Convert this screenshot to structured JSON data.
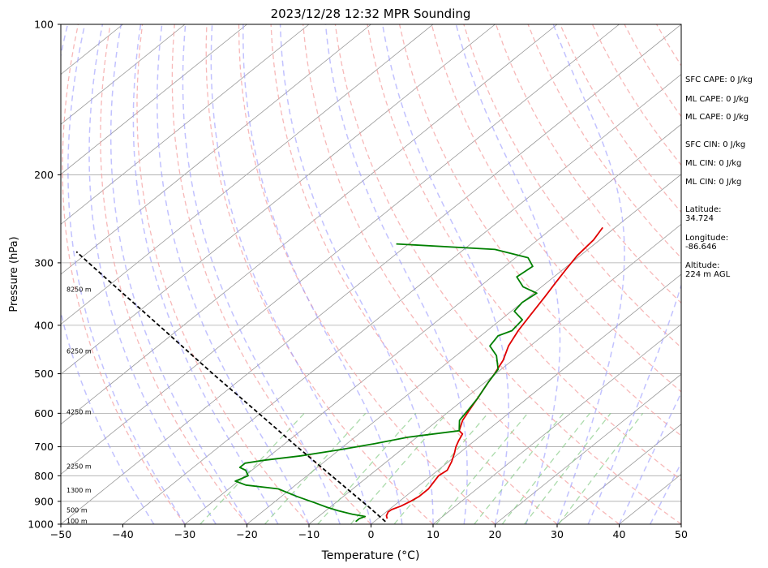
{
  "chart_data": {
    "type": "line",
    "title": "2023/12/28 12:32 MPR Sounding",
    "xlabel": "Temperature (°C)",
    "ylabel": "Pressure (hPa)",
    "xlim": [
      -50,
      50
    ],
    "ylim": [
      1000,
      100
    ],
    "y_scale": "log",
    "xticks": [
      -50,
      -40,
      -30,
      -20,
      -10,
      0,
      10,
      20,
      30,
      40,
      50
    ],
    "yticks": [
      100,
      200,
      300,
      400,
      500,
      600,
      700,
      800,
      900,
      1000
    ],
    "grid": true,
    "background_lines": {
      "isotherms_skewed": {
        "color": "#999999",
        "style": "solid"
      },
      "dry_adiabats": {
        "color": "#f4a0a0",
        "style": "dashed"
      },
      "moist_adiabats": {
        "color": "#9999ff",
        "style": "dashed"
      },
      "mixing_ratio": {
        "color": "#88cc88",
        "style": "dashed"
      }
    },
    "series": [
      {
        "key": "temperature",
        "color": "#e00000",
        "points": [
          {
            "p": 975,
            "t": 1.5
          },
          {
            "p": 962,
            "t": 0.8
          },
          {
            "p": 945,
            "t": 0.3
          },
          {
            "p": 935,
            "t": 0.4
          },
          {
            "p": 920,
            "t": 1.2
          },
          {
            "p": 900,
            "t": 1.8
          },
          {
            "p": 880,
            "t": 2.2
          },
          {
            "p": 850,
            "t": 2.2
          },
          {
            "p": 830,
            "t": 1.8
          },
          {
            "p": 800,
            "t": 1.2
          },
          {
            "p": 780,
            "t": 1.5
          },
          {
            "p": 750,
            "t": 0.5
          },
          {
            "p": 720,
            "t": -0.8
          },
          {
            "p": 700,
            "t": -1.8
          },
          {
            "p": 680,
            "t": -2.6
          },
          {
            "p": 660,
            "t": -3.3
          },
          {
            "p": 650,
            "t": -4.5
          },
          {
            "p": 620,
            "t": -6.0
          },
          {
            "p": 590,
            "t": -7.0
          },
          {
            "p": 560,
            "t": -8.0
          },
          {
            "p": 520,
            "t": -9.5
          },
          {
            "p": 500,
            "t": -10.2
          },
          {
            "p": 470,
            "t": -11.5
          },
          {
            "p": 440,
            "t": -13.5
          },
          {
            "p": 410,
            "t": -15.0
          },
          {
            "p": 380,
            "t": -16.2
          },
          {
            "p": 350,
            "t": -17.5
          },
          {
            "p": 330,
            "t": -18.5
          },
          {
            "p": 310,
            "t": -19.5
          },
          {
            "p": 290,
            "t": -20.5
          },
          {
            "p": 270,
            "t": -21.0
          },
          {
            "p": 255,
            "t": -22.0
          }
        ]
      },
      {
        "key": "dewpoint",
        "color": "#008000",
        "points": [
          {
            "p": 988,
            "t": -3.0
          },
          {
            "p": 975,
            "t": -3.0
          },
          {
            "p": 965,
            "t": -2.5
          },
          {
            "p": 955,
            "t": -5.0
          },
          {
            "p": 940,
            "t": -8.0
          },
          {
            "p": 925,
            "t": -10.5
          },
          {
            "p": 905,
            "t": -13.5
          },
          {
            "p": 880,
            "t": -17.5
          },
          {
            "p": 850,
            "t": -22.0
          },
          {
            "p": 835,
            "t": -28.0
          },
          {
            "p": 820,
            "t": -30.5
          },
          {
            "p": 800,
            "t": -29.5
          },
          {
            "p": 780,
            "t": -31.0
          },
          {
            "p": 770,
            "t": -32.5
          },
          {
            "p": 755,
            "t": -32.5
          },
          {
            "p": 745,
            "t": -30.0
          },
          {
            "p": 730,
            "t": -25.0
          },
          {
            "p": 710,
            "t": -20.0
          },
          {
            "p": 690,
            "t": -15.5
          },
          {
            "p": 670,
            "t": -11.5
          },
          {
            "p": 650,
            "t": -4.5
          },
          {
            "p": 620,
            "t": -6.5
          },
          {
            "p": 590,
            "t": -7.2
          },
          {
            "p": 560,
            "t": -8.0
          },
          {
            "p": 520,
            "t": -9.5
          },
          {
            "p": 490,
            "t": -10.5
          },
          {
            "p": 460,
            "t": -13.5
          },
          {
            "p": 440,
            "t": -16.5
          },
          {
            "p": 420,
            "t": -17.2
          },
          {
            "p": 410,
            "t": -16.0
          },
          {
            "p": 390,
            "t": -16.5
          },
          {
            "p": 375,
            "t": -19.5
          },
          {
            "p": 360,
            "t": -20.0
          },
          {
            "p": 345,
            "t": -19.5
          },
          {
            "p": 335,
            "t": -23.0
          },
          {
            "p": 320,
            "t": -26.0
          },
          {
            "p": 305,
            "t": -25.5
          },
          {
            "p": 293,
            "t": -28.0
          },
          {
            "p": 282,
            "t": -35.0
          },
          {
            "p": 275,
            "t": -52.0
          }
        ]
      },
      {
        "key": "parcel",
        "color": "#000000",
        "style": "dashed",
        "points": [
          {
            "p": 988,
            "t": 1.8
          },
          {
            "p": 925,
            "t": -3.7
          },
          {
            "p": 850,
            "t": -10.9
          },
          {
            "p": 700,
            "t": -27.4
          },
          {
            "p": 600,
            "t": -40.3
          },
          {
            "p": 500,
            "t": -55.6
          },
          {
            "p": 400,
            "t": -74.0
          },
          {
            "p": 300,
            "t": -97.8
          },
          {
            "p": 285,
            "t": -102.0
          }
        ]
      }
    ],
    "height_labels": [
      {
        "label": "100 m",
        "p": 988
      },
      {
        "label": "500 m",
        "p": 941
      },
      {
        "label": "1300 m",
        "p": 858
      },
      {
        "label": "2250 m",
        "p": 768
      },
      {
        "label": "4250 m",
        "p": 598
      },
      {
        "label": "6250 m",
        "p": 452
      },
      {
        "label": "8250 m",
        "p": 340
      }
    ]
  },
  "side_info": {
    "sfc_cape": "SFC CAPE: 0 J/kg",
    "ml_cape_1": "ML CAPE: 0 J/kg",
    "ml_cape_2": "ML CAPE: 0 J/kg",
    "sfc_cin": "SFC CIN: 0 J/kg",
    "ml_cin_1": "ML CIN: 0 J/kg",
    "ml_cin_2": "ML CIN: 0 J/kg",
    "latitude": "Latitude:\n34.724",
    "longitude": "Longitude:\n-86.646",
    "altitude": "Altitude:\n224 m AGL"
  }
}
